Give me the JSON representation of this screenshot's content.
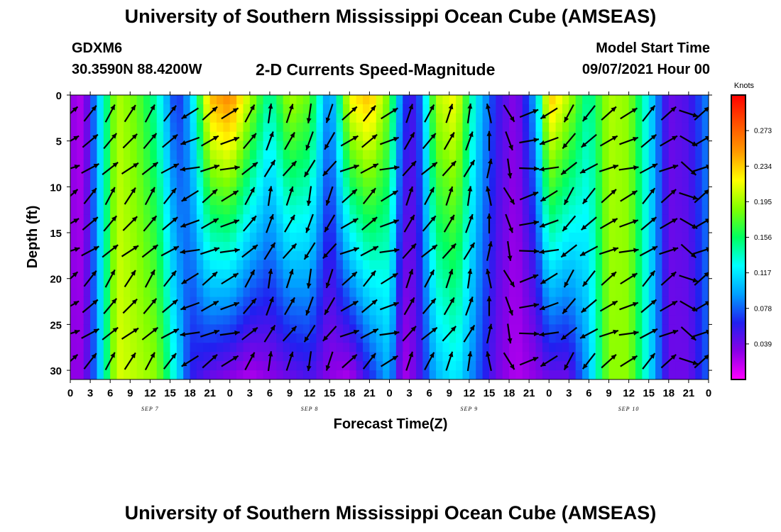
{
  "header": {
    "title": "University of Southern Mississippi Ocean Cube (AMSEAS)",
    "station": "GDXM6",
    "coordinates": "30.3590N  88.4200W",
    "variable_title": "2-D Currents Speed-Magnitude",
    "start_label": "Model Start Time",
    "start_time": "09/07/2021 Hour 00"
  },
  "footer": {
    "title": "University of Southern Mississippi Ocean Cube (AMSEAS)"
  },
  "chart_data": {
    "type": "heatmap",
    "title": "2-D Currents Speed-Magnitude",
    "xlabel": "Forecast Time(Z)",
    "ylabel": "Depth (ft)",
    "x_tick_labels": [
      "0",
      "3",
      "6",
      "9",
      "12",
      "15",
      "18",
      "21",
      "0",
      "3",
      "6",
      "9",
      "12",
      "15",
      "18",
      "21",
      "0",
      "3",
      "6",
      "9",
      "12",
      "15",
      "18",
      "21",
      "0",
      "3",
      "6",
      "9",
      "12",
      "15",
      "18",
      "21",
      "0"
    ],
    "day_labels": [
      "SEP 7",
      "SEP 8",
      "SEP 9",
      "SEP 10"
    ],
    "day_label_hours": [
      12,
      36,
      60,
      84
    ],
    "xlim_hours": [
      0,
      96
    ],
    "y_ticks": [
      0,
      5,
      10,
      15,
      20,
      25,
      30
    ],
    "ylim_ft": [
      0,
      31
    ],
    "colorbar": {
      "unit": "Knots",
      "ticks": [
        0.273,
        0.234,
        0.195,
        0.156,
        0.117,
        0.078,
        0.039
      ],
      "range": [
        0,
        0.312
      ]
    },
    "colormap": [
      "#ff00ff",
      "#8a00e6",
      "#2020f0",
      "#00a0ff",
      "#00ffff",
      "#00ff60",
      "#80ff00",
      "#ffff00",
      "#ff9a00",
      "#ff5000",
      "#ff0000"
    ],
    "speed_profile_by_hour": [
      {
        "hour": 0,
        "surface": 0.03,
        "bottom": 0.03
      },
      {
        "hour": 2,
        "surface": 0.02,
        "bottom": 0.03
      },
      {
        "hour": 4,
        "surface": 0.1,
        "bottom": 0.09
      },
      {
        "hour": 7,
        "surface": 0.2,
        "bottom": 0.21
      },
      {
        "hour": 10,
        "surface": 0.18,
        "bottom": 0.2
      },
      {
        "hour": 13,
        "surface": 0.14,
        "bottom": 0.19
      },
      {
        "hour": 16,
        "surface": 0.06,
        "bottom": 0.12
      },
      {
        "hour": 18,
        "surface": 0.1,
        "bottom": 0.06
      },
      {
        "hour": 21,
        "surface": 0.24,
        "bottom": 0.04
      },
      {
        "hour": 24,
        "surface": 0.26,
        "bottom": 0.03
      },
      {
        "hour": 27,
        "surface": 0.2,
        "bottom": 0.02
      },
      {
        "hour": 30,
        "surface": 0.14,
        "bottom": 0.03
      },
      {
        "hour": 33,
        "surface": 0.2,
        "bottom": 0.04
      },
      {
        "hour": 36,
        "surface": 0.18,
        "bottom": 0.05
      },
      {
        "hour": 39,
        "surface": 0.08,
        "bottom": 0.03
      },
      {
        "hour": 42,
        "surface": 0.22,
        "bottom": 0.02
      },
      {
        "hour": 45,
        "surface": 0.24,
        "bottom": 0.06
      },
      {
        "hour": 48,
        "surface": 0.18,
        "bottom": 0.1
      },
      {
        "hour": 50,
        "surface": 0.07,
        "bottom": 0.02
      },
      {
        "hour": 52,
        "surface": 0.05,
        "bottom": 0.04
      },
      {
        "hour": 55,
        "surface": 0.2,
        "bottom": 0.1
      },
      {
        "hour": 58,
        "surface": 0.22,
        "bottom": 0.12
      },
      {
        "hour": 61,
        "surface": 0.12,
        "bottom": 0.08
      },
      {
        "hour": 64,
        "surface": 0.06,
        "bottom": 0.04
      },
      {
        "hour": 67,
        "surface": 0.03,
        "bottom": 0.02
      },
      {
        "hour": 70,
        "surface": 0.1,
        "bottom": 0.03
      },
      {
        "hour": 72,
        "surface": 0.24,
        "bottom": 0.04
      },
      {
        "hour": 75,
        "surface": 0.2,
        "bottom": 0.04
      },
      {
        "hour": 78,
        "surface": 0.14,
        "bottom": 0.1
      },
      {
        "hour": 81,
        "surface": 0.2,
        "bottom": 0.19
      },
      {
        "hour": 84,
        "surface": 0.19,
        "bottom": 0.19
      },
      {
        "hour": 87,
        "surface": 0.12,
        "bottom": 0.12
      },
      {
        "hour": 90,
        "surface": 0.04,
        "bottom": 0.04
      },
      {
        "hour": 93,
        "surface": 0.05,
        "bottom": 0.04
      },
      {
        "hour": 96,
        "surface": 0.09,
        "bottom": 0.08
      }
    ],
    "vector_depths_ft": [
      2,
      5,
      8,
      11,
      14,
      17,
      20,
      23,
      26,
      29
    ],
    "vector_direction_deg_by_hour": [
      {
        "hour": 0,
        "deg": 60
      },
      {
        "hour": 3,
        "deg": 50
      },
      {
        "hour": 6,
        "deg": 40
      },
      {
        "hour": 9,
        "deg": 45
      },
      {
        "hour": 12,
        "deg": 40
      },
      {
        "hour": 15,
        "deg": 50
      },
      {
        "hour": 18,
        "deg": 250
      },
      {
        "hour": 21,
        "deg": 60
      },
      {
        "hour": 24,
        "deg": 70
      },
      {
        "hour": 27,
        "deg": 40
      },
      {
        "hour": 30,
        "deg": 20
      },
      {
        "hour": 33,
        "deg": 30
      },
      {
        "hour": 36,
        "deg": 200
      },
      {
        "hour": 39,
        "deg": 210
      },
      {
        "hour": 42,
        "deg": 60
      },
      {
        "hour": 45,
        "deg": 50
      },
      {
        "hour": 48,
        "deg": 70
      },
      {
        "hour": 51,
        "deg": 30
      },
      {
        "hour": 54,
        "deg": 40
      },
      {
        "hour": 57,
        "deg": 30
      },
      {
        "hour": 60,
        "deg": 20
      },
      {
        "hour": 63,
        "deg": 0
      },
      {
        "hour": 66,
        "deg": 160
      },
      {
        "hour": 69,
        "deg": 80
      },
      {
        "hour": 72,
        "deg": 250
      },
      {
        "hour": 75,
        "deg": 220
      },
      {
        "hour": 78,
        "deg": 230
      },
      {
        "hour": 81,
        "deg": 60
      },
      {
        "hour": 84,
        "deg": 70
      },
      {
        "hour": 87,
        "deg": 50
      },
      {
        "hour": 90,
        "deg": 60
      },
      {
        "hour": 93,
        "deg": 120
      },
      {
        "hour": 95,
        "deg": 60
      }
    ]
  }
}
